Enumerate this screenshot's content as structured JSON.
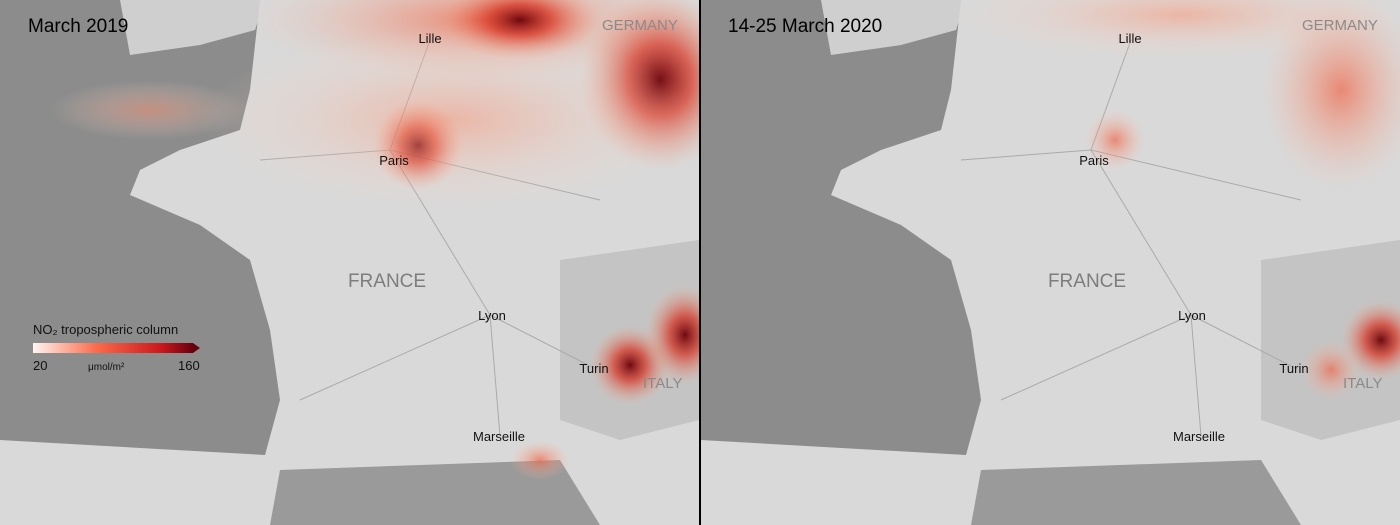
{
  "panels": [
    {
      "title": "March 2019",
      "countries": [
        "GERMANY",
        "FRANCE",
        "ITALY"
      ],
      "cities": [
        "Lille",
        "Paris",
        "Lyon",
        "Turin",
        "Marseille"
      ]
    },
    {
      "title": "14-25 March 2020",
      "countries": [
        "GERMANY",
        "FRANCE",
        "ITALY"
      ],
      "cities": [
        "Lille",
        "Paris",
        "Lyon",
        "Turin",
        "Marseille"
      ]
    }
  ],
  "legend": {
    "title": "NO₂ tropospheric column",
    "min": "20",
    "unit": "μmol/m²",
    "max": "160"
  }
}
